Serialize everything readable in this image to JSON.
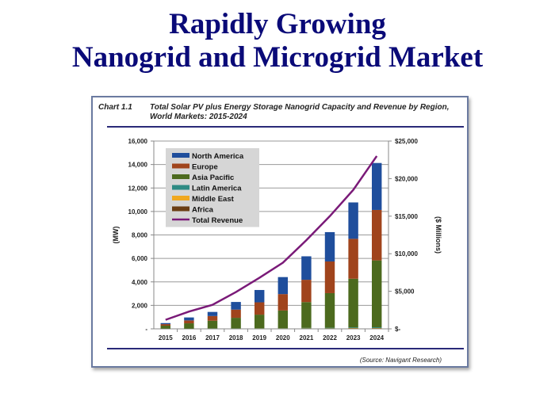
{
  "slide": {
    "title_line1": "Rapidly Growing",
    "title_line2": "Nanogrid and Microgrid Market"
  },
  "chart_header": {
    "label": "Chart 1.1",
    "title": "Total Solar PV plus Energy Storage Nanogrid Capacity and Revenue by Region, World Markets: 2015-2024"
  },
  "source": "(Source: Navigant Research)",
  "colors": {
    "north_america": "#1f4e9c",
    "europe": "#a0441c",
    "asia_pacific": "#4c6a1e",
    "latin_america": "#2e8b84",
    "middle_east": "#f0a820",
    "africa": "#6b3e14",
    "total_revenue": "#7a1a78",
    "title": "#0a0a78",
    "rule": "#2a2a78"
  },
  "chart_data": {
    "type": "bar",
    "stacked": true,
    "title": "Total Solar PV plus Energy Storage Nanogrid Capacity and Revenue by Region, World Markets: 2015-2024",
    "categories": [
      "2015",
      "2016",
      "2017",
      "2018",
      "2019",
      "2020",
      "2021",
      "2022",
      "2023",
      "2024"
    ],
    "ylabel": "(MW)",
    "y2label": "($ Millions)",
    "ylim": [
      0,
      16000
    ],
    "y2lim": [
      0,
      25000
    ],
    "yticks": [
      "-",
      "2,000",
      "4,000",
      "6,000",
      "8,000",
      "10,000",
      "12,000",
      "14,000",
      "16,000"
    ],
    "y2ticks": [
      "$-",
      "$5,000",
      "$10,000",
      "$15,000",
      "$20,000",
      "$25,000"
    ],
    "grid": true,
    "legend_position": "top-left",
    "series": [
      {
        "name": "Africa",
        "key": "africa",
        "values": [
          5,
          5,
          10,
          10,
          15,
          15,
          20,
          20,
          30,
          30
        ]
      },
      {
        "name": "Middle East",
        "key": "middle_east",
        "values": [
          5,
          5,
          10,
          10,
          15,
          15,
          20,
          20,
          30,
          30
        ]
      },
      {
        "name": "Latin America",
        "key": "latin_america",
        "values": [
          10,
          10,
          20,
          20,
          30,
          30,
          40,
          50,
          60,
          70
        ]
      },
      {
        "name": "Asia Pacific",
        "key": "asia_pacific",
        "values": [
          250,
          450,
          650,
          900,
          1150,
          1500,
          2200,
          2950,
          4150,
          5700
        ]
      },
      {
        "name": "Europe",
        "key": "europe",
        "values": [
          130,
          250,
          400,
          700,
          1050,
          1400,
          1900,
          2700,
          3400,
          4300
        ]
      },
      {
        "name": "North America",
        "key": "north_america",
        "values": [
          90,
          250,
          350,
          650,
          1050,
          1450,
          2000,
          2500,
          3100,
          4000
        ]
      }
    ],
    "line_series": {
      "name": "Total Revenue",
      "key": "total_revenue",
      "axis": "right",
      "values": [
        1200,
        2300,
        3200,
        4900,
        6800,
        8800,
        11800,
        15000,
        18500,
        23000
      ]
    },
    "legend": [
      "North America",
      "Europe",
      "Asia Pacific",
      "Latin America",
      "Middle East",
      "Africa",
      "Total Revenue"
    ]
  }
}
